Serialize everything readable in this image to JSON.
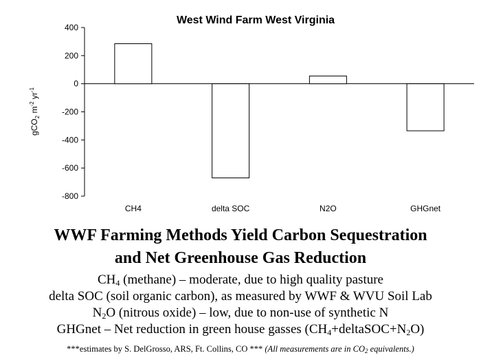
{
  "chart_data": {
    "type": "bar",
    "title": "West Wind Farm West Virginia",
    "ylabel_parts": [
      "gCO",
      "2",
      " m",
      "-2",
      " yr",
      "-1"
    ],
    "categories": [
      "CH4",
      "delta SOC",
      "N2O",
      "GHGnet"
    ],
    "values": [
      285,
      -670,
      55,
      -335
    ],
    "ylim": [
      -800,
      400
    ],
    "yticks": [
      400,
      200,
      0,
      -200,
      -400,
      -600,
      -800
    ],
    "bar_fill": "#ffffff",
    "bar_stroke": "#000000",
    "grid": false,
    "legend": "none"
  },
  "headline": {
    "line1": "WWF Farming Methods Yield Carbon Sequestration",
    "line2": "and Net Greenhouse Gas Reduction"
  },
  "descriptions": {
    "ch4": {
      "a": "CH",
      "sub": "4",
      "b": " (methane) – moderate, due to high quality pasture"
    },
    "soc": {
      "a": "delta SOC (soil organic carbon), as measured by WWF & WVU Soil Lab"
    },
    "n2o": {
      "a": "N",
      "sub": "2",
      "b": "O (nitrous oxide) – low, due to non-use of synthetic N"
    },
    "ghg": {
      "a": "GHGnet – Net reduction in green house gasses (CH",
      "sub1": "4",
      "b": "+deltaSOC+N",
      "sub2": "2",
      "c": "O)"
    }
  },
  "footnote": {
    "plain": "***estimates by S. DelGrosso, ARS, Ft. Collins, CO *** ",
    "ital_a": "(All measurements are in CO",
    "ital_sub": "2",
    "ital_b": " equivalents.)"
  }
}
